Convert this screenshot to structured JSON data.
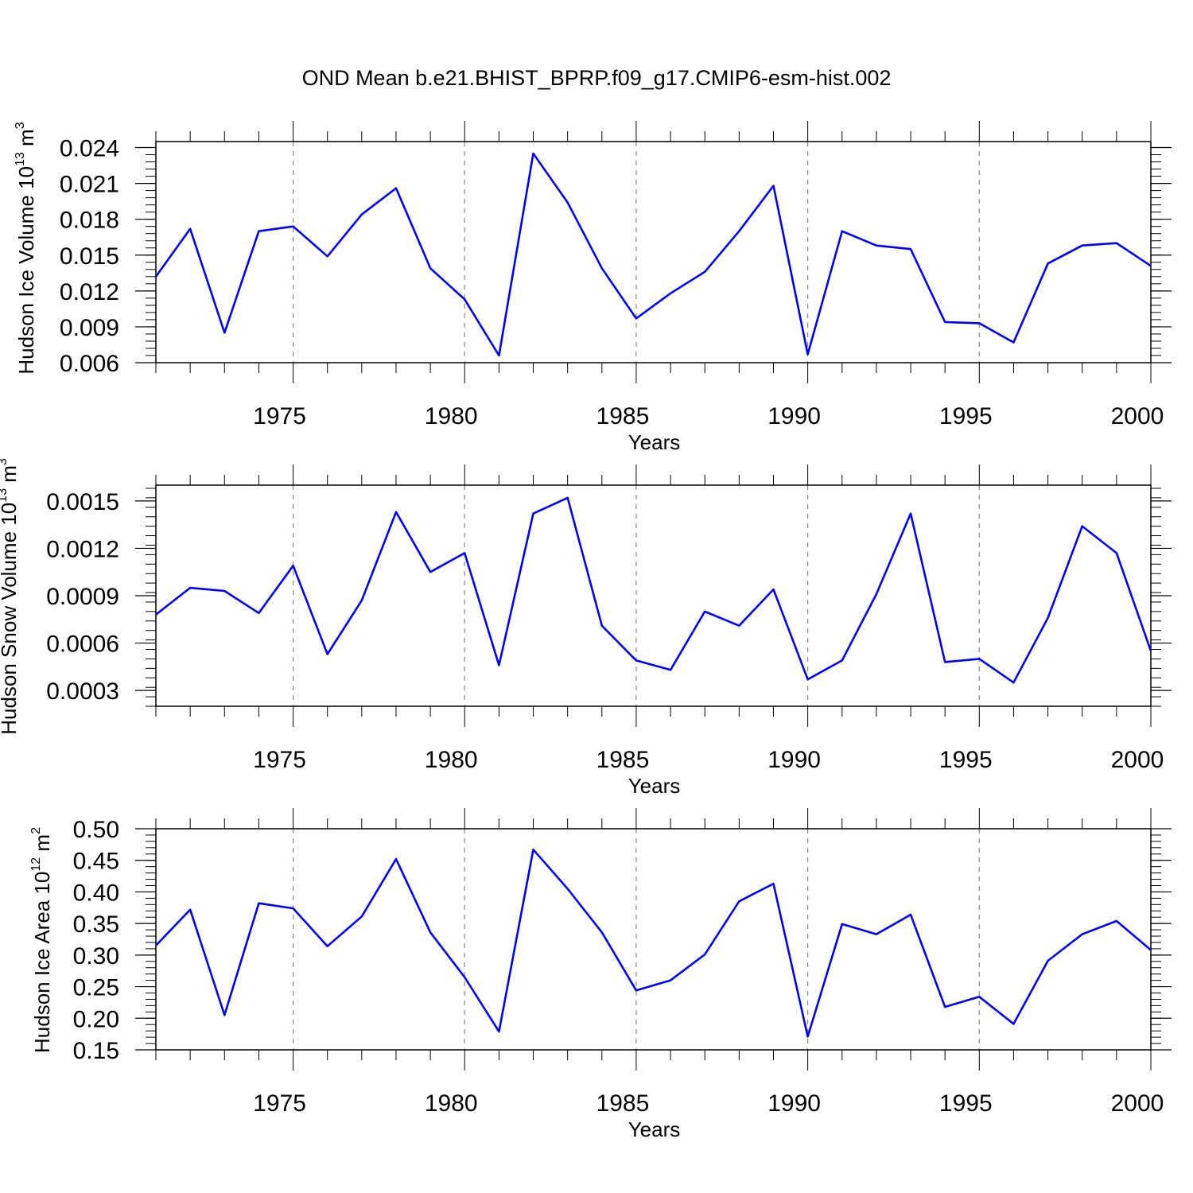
{
  "title": "OND Mean b.e21.BHIST_BPRP.f09_g17.CMIP6-esm-hist.002",
  "colors": {
    "series": "#0000ff",
    "frame": "#000000",
    "grid": "#888888"
  },
  "chart_data": [
    {
      "type": "line",
      "ylabel": {
        "text": "Hudson Ice Volume 10",
        "exp": "13",
        "unit": " m",
        "unit_exp": "3"
      },
      "xlabel": "Years",
      "xlim": [
        1971,
        2000
      ],
      "ylim": [
        0.006,
        0.0245
      ],
      "yticks": [
        "0.006",
        "0.009",
        "0.012",
        "0.015",
        "0.018",
        "0.021",
        "0.024"
      ],
      "xticks": [
        "1975",
        "1980",
        "1985",
        "1990",
        "1995",
        "2000"
      ],
      "grid": "dashed vertical at major x ticks",
      "x": [
        1971,
        1972,
        1973,
        1974,
        1975,
        1976,
        1977,
        1978,
        1979,
        1980,
        1981,
        1982,
        1983,
        1984,
        1985,
        1986,
        1987,
        1988,
        1989,
        1990,
        1991,
        1992,
        1993,
        1994,
        1995,
        1996,
        1997,
        1998,
        1999,
        2000
      ],
      "series": [
        {
          "values": [
            0.0132,
            0.0172,
            0.0085,
            0.017,
            0.0174,
            0.0149,
            0.0184,
            0.0206,
            0.0139,
            0.0113,
            0.0066,
            0.0235,
            0.0194,
            0.0139,
            0.0097,
            0.0118,
            0.0136,
            0.017,
            0.0208,
            0.0067,
            0.017,
            0.0158,
            0.0155,
            0.0094,
            0.0093,
            0.0077,
            0.0143,
            0.0158,
            0.016,
            0.0141
          ]
        }
      ]
    },
    {
      "type": "line",
      "ylabel": {
        "text": "Hudson Snow Volume 10",
        "exp": "13",
        "unit": " m",
        "unit_exp": "3"
      },
      "xlabel": "Years",
      "xlim": [
        1971,
        2000
      ],
      "ylim": [
        0.0002,
        0.0016
      ],
      "yticks": [
        "0.0003",
        "0.0006",
        "0.0009",
        "0.0012",
        "0.0015"
      ],
      "xticks": [
        "1975",
        "1980",
        "1985",
        "1990",
        "1995",
        "2000"
      ],
      "grid": "dashed vertical at major x ticks",
      "x": [
        1971,
        1972,
        1973,
        1974,
        1975,
        1976,
        1977,
        1978,
        1979,
        1980,
        1981,
        1982,
        1983,
        1984,
        1985,
        1986,
        1987,
        1988,
        1989,
        1990,
        1991,
        1992,
        1993,
        1994,
        1995,
        1996,
        1997,
        1998,
        1999,
        2000
      ],
      "series": [
        {
          "values": [
            0.00078,
            0.00095,
            0.00093,
            0.00079,
            0.00109,
            0.00053,
            0.00087,
            0.00143,
            0.00105,
            0.00117,
            0.00046,
            0.00142,
            0.00152,
            0.00071,
            0.00049,
            0.00043,
            0.0008,
            0.00071,
            0.00094,
            0.00037,
            0.00049,
            0.00091,
            0.00142,
            0.00048,
            0.0005,
            0.00035,
            0.00076,
            0.00134,
            0.00117,
            0.00055
          ]
        }
      ]
    },
    {
      "type": "line",
      "ylabel": {
        "text": "Hudson Ice Area 10",
        "exp": "12",
        "unit": " m",
        "unit_exp": "2"
      },
      "xlabel": "Years",
      "xlim": [
        1971,
        2000
      ],
      "ylim": [
        0.15,
        0.5
      ],
      "yticks": [
        "0.15",
        "0.20",
        "0.25",
        "0.30",
        "0.35",
        "0.40",
        "0.45",
        "0.50"
      ],
      "xticks": [
        "1975",
        "1980",
        "1985",
        "1990",
        "1995",
        "2000"
      ],
      "grid": "dashed vertical at major x ticks",
      "x": [
        1971,
        1972,
        1973,
        1974,
        1975,
        1976,
        1977,
        1978,
        1979,
        1980,
        1981,
        1982,
        1983,
        1984,
        1985,
        1986,
        1987,
        1988,
        1989,
        1990,
        1991,
        1992,
        1993,
        1994,
        1995,
        1996,
        1997,
        1998,
        1999,
        2000
      ],
      "series": [
        {
          "values": [
            0.315,
            0.372,
            0.205,
            0.382,
            0.374,
            0.314,
            0.361,
            0.452,
            0.336,
            0.265,
            0.179,
            0.467,
            0.405,
            0.336,
            0.244,
            0.26,
            0.301,
            0.385,
            0.413,
            0.171,
            0.349,
            0.333,
            0.364,
            0.218,
            0.234,
            0.191,
            0.291,
            0.333,
            0.354,
            0.308
          ]
        }
      ]
    }
  ]
}
